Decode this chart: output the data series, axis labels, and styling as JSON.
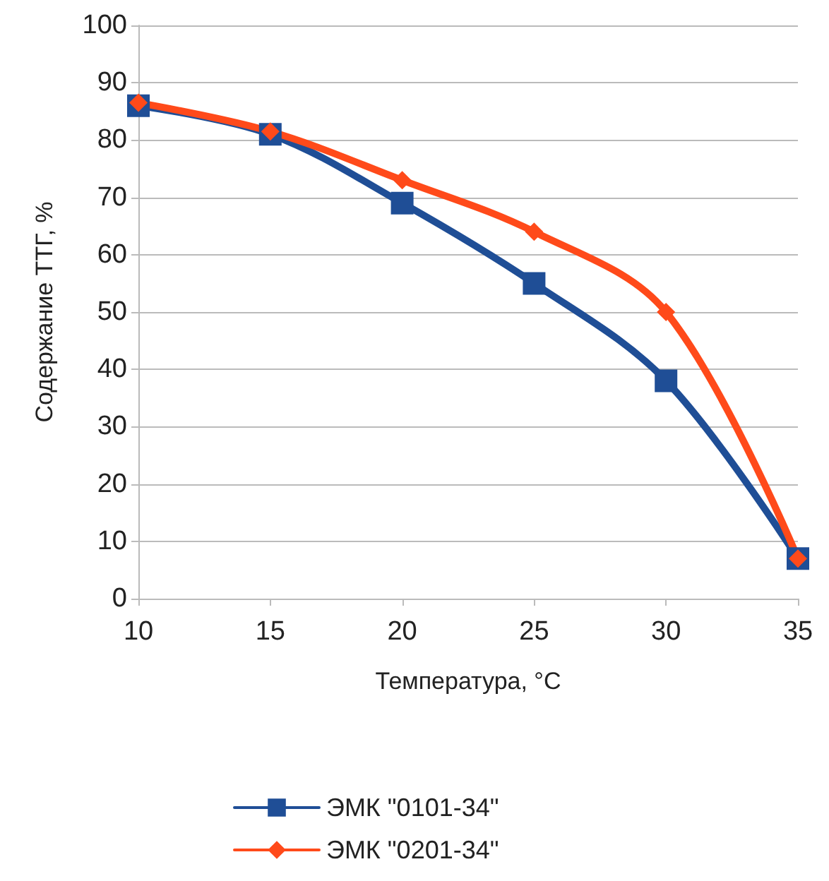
{
  "chart_data": {
    "type": "line",
    "xlabel": "Температура, °C",
    "ylabel": "Содержание ТТГ, %",
    "x": [
      10,
      15,
      20,
      25,
      30,
      35
    ],
    "xlim": [
      10,
      35
    ],
    "xticks": [
      10,
      15,
      20,
      25,
      30,
      35
    ],
    "ylim": [
      0,
      100
    ],
    "yticks": [
      0,
      10,
      20,
      30,
      40,
      50,
      60,
      70,
      80,
      90,
      100
    ],
    "grid": "y",
    "legend": "bottom",
    "line_style": "solid",
    "series": [
      {
        "name": "ЭМК \"0101-34\"",
        "color": "#1f4e96",
        "marker": "square",
        "values": [
          86,
          81,
          69,
          55,
          38,
          7
        ]
      },
      {
        "name": "ЭМК \"0201-34\"",
        "color": "#ff4a1a",
        "marker": "diamond",
        "values": [
          86.5,
          81.5,
          73,
          64,
          50,
          7
        ]
      }
    ]
  }
}
